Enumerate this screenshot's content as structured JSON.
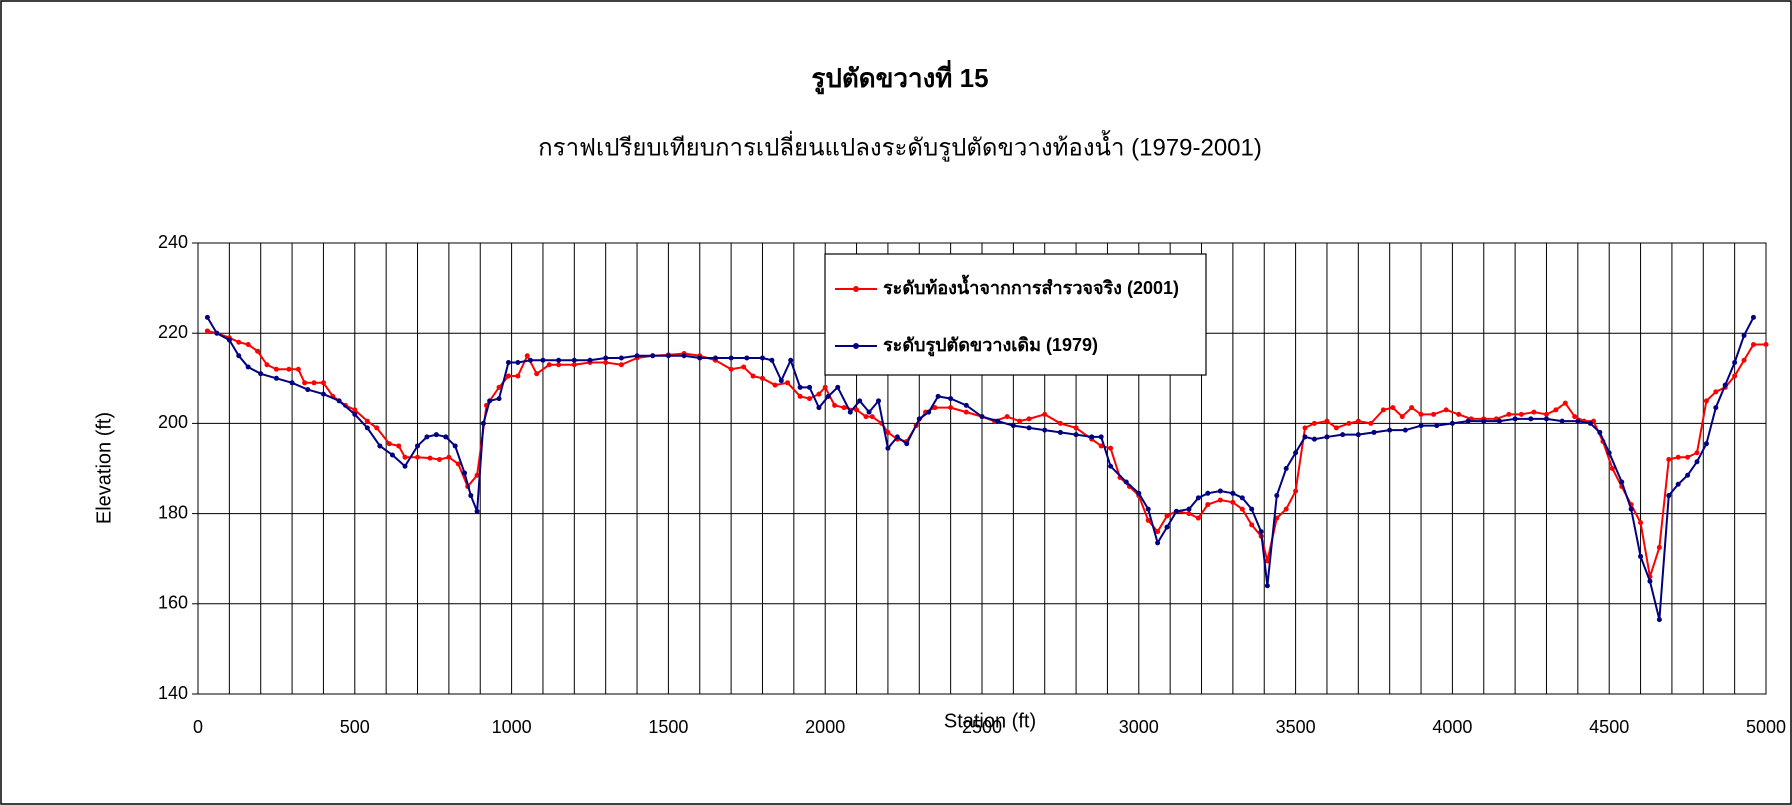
{
  "chart_data": {
    "type": "line",
    "title": "รูปตัดขวางที่ 15",
    "subtitle": "กราฟเปรียบเทียบการเปลี่ยนแปลงระดับรูปตัดขวางท้องน้ำ (1979-2001)",
    "x_label": "Station (ft)",
    "y_label": "Elevation (ft)",
    "xlim": [
      0,
      5000
    ],
    "xticks": [
      0,
      500,
      1000,
      1500,
      2000,
      2500,
      3000,
      3500,
      4000,
      4500,
      5000
    ],
    "xminorticks": [
      100,
      200,
      300,
      400,
      500,
      600,
      700,
      800,
      900,
      1000,
      1100,
      1200,
      1300,
      1400,
      1500,
      1600,
      1700,
      1800,
      1900,
      2000,
      2100,
      2200,
      2300,
      2400,
      2500,
      2600,
      2700,
      2800,
      2900,
      3000,
      3100,
      3200,
      3300,
      3400,
      3500,
      3600,
      3700,
      3800,
      3900,
      4000,
      4100,
      4200,
      4300,
      4400,
      4500,
      4600,
      4700,
      4800,
      4900
    ],
    "ylim": [
      140,
      240
    ],
    "yticks": [
      140,
      160,
      180,
      200,
      220,
      240
    ],
    "grid": true,
    "legend": "top",
    "series": [
      {
        "name": "ระดับท้องน้ำจากการสำรวจจริง (2001)",
        "color": "#ff0000",
        "x": [
          30,
          60,
          100,
          130,
          160,
          190,
          220,
          250,
          290,
          320,
          340,
          370,
          400,
          430,
          470,
          500,
          540,
          570,
          610,
          640,
          660,
          700,
          740,
          770,
          800,
          830,
          860,
          890,
          920,
          960,
          990,
          1020,
          1050,
          1080,
          1120,
          1150,
          1200,
          1250,
          1300,
          1350,
          1400,
          1450,
          1500,
          1550,
          1600,
          1650,
          1700,
          1740,
          1770,
          1800,
          1840,
          1880,
          1920,
          1950,
          1980,
          2000,
          2030,
          2060,
          2100,
          2130,
          2150,
          2180,
          2200,
          2230,
          2260,
          2290,
          2320,
          2350,
          2400,
          2450,
          2500,
          2540,
          2580,
          2620,
          2650,
          2700,
          2750,
          2800,
          2850,
          2880,
          2910,
          2940,
          2970,
          3000,
          3030,
          3060,
          3090,
          3120,
          3160,
          3190,
          3220,
          3260,
          3300,
          3330,
          3360,
          3390,
          3410,
          3440,
          3470,
          3500,
          3530,
          3560,
          3600,
          3630,
          3670,
          3700,
          3740,
          3780,
          3810,
          3840,
          3870,
          3900,
          3940,
          3980,
          4020,
          4060,
          4100,
          4140,
          4180,
          4220,
          4260,
          4300,
          4330,
          4360,
          4390,
          4420,
          4450,
          4480,
          4510,
          4540,
          4570,
          4600,
          4630,
          4660,
          4690,
          4720,
          4750,
          4780,
          4810,
          4840,
          4870,
          4900,
          4930,
          4960,
          5000
        ],
        "values": [
          220.5,
          220,
          219,
          218,
          217.5,
          216,
          213,
          212,
          212,
          212,
          209,
          209,
          209,
          206,
          204,
          203,
          200.5,
          199,
          195.5,
          195,
          192.5,
          192.5,
          192.3,
          192,
          192.5,
          191,
          186,
          188.5,
          204,
          208,
          210.5,
          210.5,
          215,
          211,
          213,
          213,
          213,
          213.5,
          213.5,
          213,
          214.5,
          215,
          215.2,
          215.5,
          215,
          214,
          212,
          212.5,
          210.5,
          210,
          208.5,
          209,
          206,
          205.5,
          206.5,
          208,
          204,
          203.5,
          203,
          201.5,
          201.5,
          200,
          198,
          196.5,
          196,
          199.5,
          202.5,
          203.5,
          203.5,
          202.5,
          201.5,
          200.5,
          201.5,
          200.5,
          201,
          202,
          200,
          199,
          196.5,
          195,
          194.5,
          188,
          186,
          184,
          178.5,
          176,
          179.5,
          180.5,
          180,
          179,
          182,
          183,
          182.5,
          181,
          177.5,
          175,
          169.5,
          179,
          181,
          185,
          199,
          200,
          200.5,
          199,
          200,
          200.5,
          200,
          203,
          203.5,
          201.5,
          203.5,
          202,
          202,
          203,
          202,
          201,
          201,
          201,
          202,
          202,
          202.5,
          202,
          203,
          204.5,
          201.5,
          200.5,
          200.5,
          196,
          190,
          186,
          182,
          178,
          166,
          172.5,
          192,
          192.5,
          192.5,
          193.5,
          205,
          207,
          208,
          210.5,
          214,
          217.5,
          217.5
        ]
      },
      {
        "name": "ระดับรูปตัดขวางเดิม (1979)",
        "color": "#000080",
        "x": [
          30,
          60,
          100,
          130,
          160,
          200,
          250,
          300,
          350,
          400,
          450,
          500,
          540,
          580,
          620,
          660,
          700,
          730,
          760,
          790,
          820,
          850,
          870,
          890,
          910,
          930,
          960,
          990,
          1020,
          1060,
          1100,
          1150,
          1200,
          1250,
          1300,
          1350,
          1400,
          1450,
          1500,
          1550,
          1600,
          1650,
          1700,
          1750,
          1800,
          1830,
          1860,
          1890,
          1920,
          1950,
          1980,
          2010,
          2040,
          2080,
          2110,
          2140,
          2170,
          2200,
          2230,
          2260,
          2300,
          2330,
          2360,
          2400,
          2450,
          2500,
          2550,
          2600,
          2650,
          2700,
          2750,
          2800,
          2850,
          2880,
          2910,
          2960,
          3000,
          3030,
          3060,
          3090,
          3120,
          3160,
          3190,
          3220,
          3260,
          3300,
          3330,
          3360,
          3390,
          3410,
          3440,
          3470,
          3500,
          3530,
          3560,
          3600,
          3650,
          3700,
          3750,
          3800,
          3850,
          3900,
          3950,
          4000,
          4050,
          4100,
          4150,
          4200,
          4250,
          4300,
          4350,
          4400,
          4440,
          4470,
          4500,
          4540,
          4570,
          4600,
          4630,
          4660,
          4690,
          4720,
          4750,
          4780,
          4810,
          4840,
          4870,
          4900,
          4930,
          4960
        ],
        "values": [
          223.5,
          220,
          218.5,
          215,
          212.5,
          211,
          210,
          209,
          207.5,
          206.5,
          205,
          202,
          199,
          195,
          193,
          190.5,
          195,
          197,
          197.5,
          197,
          195,
          189,
          184,
          180.5,
          200,
          205,
          205.5,
          213.5,
          213.5,
          214,
          214,
          214,
          214,
          214,
          214.5,
          214.5,
          215,
          215,
          215,
          215,
          214.5,
          214.5,
          214.5,
          214.5,
          214.5,
          214,
          209.5,
          214,
          208,
          208,
          203.5,
          206,
          208,
          202.5,
          205,
          202.5,
          205,
          194.5,
          197,
          195.5,
          201,
          202.5,
          206,
          205.5,
          204,
          201.5,
          200.5,
          199.5,
          199,
          198.5,
          198,
          197.5,
          197,
          197,
          190.5,
          187,
          184.5,
          181,
          173.5,
          177,
          180.5,
          181,
          183.5,
          184.5,
          185,
          184.5,
          183.5,
          181,
          176,
          164,
          184,
          190,
          193.5,
          197,
          196.5,
          197,
          197.5,
          197.5,
          198,
          198.5,
          198.5,
          199.5,
          199.5,
          200,
          200.5,
          200.5,
          200.5,
          201,
          201,
          201,
          200.5,
          200.5,
          200,
          198,
          193.5,
          187,
          181,
          170.5,
          165,
          156.5,
          184,
          186.5,
          188.5,
          191.5,
          195.5,
          203.5,
          208.5,
          213.5,
          219.5,
          223.5
        ]
      }
    ]
  }
}
